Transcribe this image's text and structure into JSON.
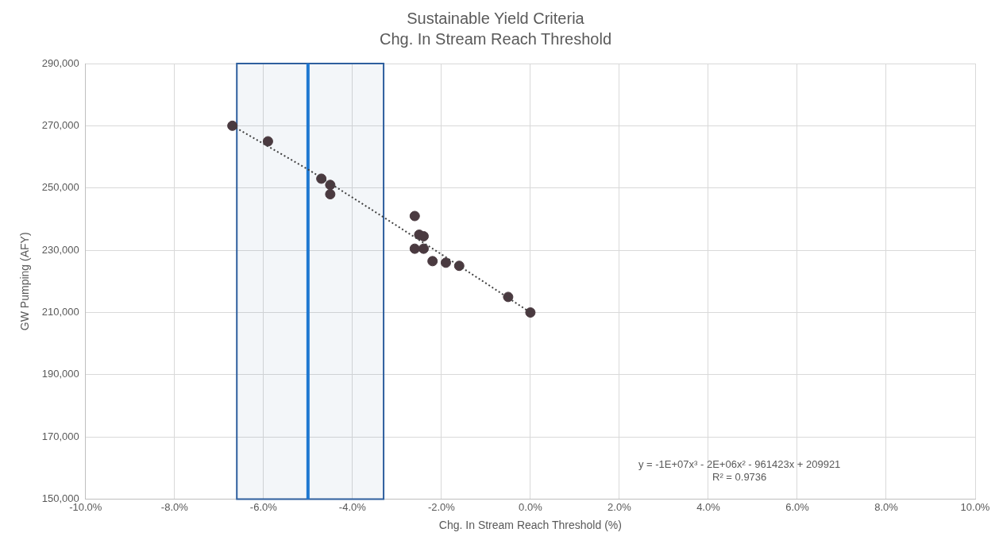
{
  "chart_data": {
    "type": "scatter",
    "title": "Sustainable Yield Criteria",
    "subtitle": "Chg. In Stream Reach Threshold",
    "xlabel": "Chg. In Stream Reach Threshold (%)",
    "ylabel": "GW Pumping (AFY)",
    "series": [
      {
        "color": "#4a3a40",
        "marker": "circle",
        "x": [
          -6.7,
          -5.9,
          -4.7,
          -4.5,
          -4.5,
          -2.6,
          -2.5,
          -2.4,
          -2.6,
          -2.4,
          -2.2,
          -1.9,
          -1.6,
          -0.5,
          0
        ],
        "values": [
          270000,
          265000,
          253000,
          251000,
          248000,
          241000,
          235000,
          234500,
          230500,
          230500,
          226500,
          226000,
          225000,
          215000,
          210000
        ]
      },
      {
        "type": "line",
        "color": "#404040",
        "line_style": "dotted",
        "marker": "none",
        "x": [
          -6.7,
          -5,
          -3.3,
          -2,
          -1,
          0
        ],
        "values": [
          270000,
          256000,
          240600,
          228700,
          219400,
          210000
        ]
      }
    ],
    "xlim": [
      -10,
      10
    ],
    "xticks": [
      {
        "value": -10,
        "label": "-10.0%"
      },
      {
        "value": -8,
        "label": "-8.0%"
      },
      {
        "value": -6,
        "label": "-6.0%"
      },
      {
        "value": -4,
        "label": "-4.0%"
      },
      {
        "value": -2,
        "label": "-2.0%"
      },
      {
        "value": 0,
        "label": "0.0%"
      },
      {
        "value": 2,
        "label": "2.0%"
      },
      {
        "value": 4,
        "label": "4.0%"
      },
      {
        "value": 6,
        "label": "6.0%"
      },
      {
        "value": 8,
        "label": "8.0%"
      },
      {
        "value": 10,
        "label": "10.0%"
      }
    ],
    "ylim": [
      150000,
      290000
    ],
    "yticks": [
      {
        "value": 150000,
        "label": "150,000"
      },
      {
        "value": 170000,
        "label": "170,000"
      },
      {
        "value": 190000,
        "label": "190,000"
      },
      {
        "value": 210000,
        "label": "210,000"
      },
      {
        "value": 230000,
        "label": "230,000"
      },
      {
        "value": 250000,
        "label": "250,000"
      },
      {
        "value": 270000,
        "label": "270,000"
      },
      {
        "value": 290000,
        "label": "290,000"
      }
    ],
    "grid": true,
    "legend": false,
    "bands": [
      {
        "axis": "x",
        "from": -6.6,
        "to": -3.3,
        "color": "#2e5f9e"
      }
    ],
    "ref_lines": [
      {
        "axis": "x",
        "value": -5,
        "color": "#1f78d1"
      }
    ],
    "annotations": [
      "y = -1E+07x³ - 2E+06x² - 961423x + 209921",
      "R² = 0.9736"
    ]
  }
}
